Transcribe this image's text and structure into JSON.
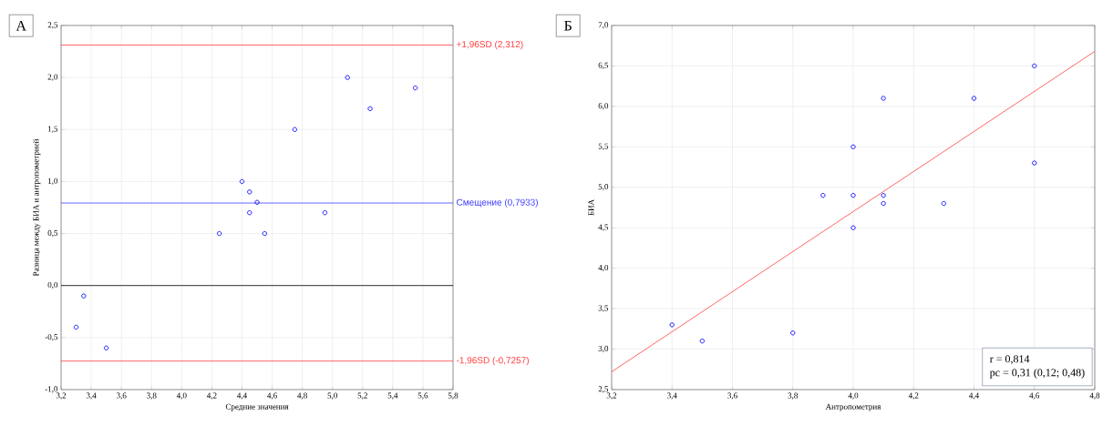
{
  "chart_data": [
    {
      "type": "scatter",
      "xlabel": "Средние значения",
      "ylabel": "Разница между БИА и антропометрией",
      "annotations": [
        "А"
      ],
      "x": [
        3.3,
        3.35,
        3.5,
        4.25,
        4.4,
        4.45,
        4.45,
        4.5,
        4.55,
        4.75,
        4.95,
        5.1,
        5.25,
        5.55
      ],
      "series": [
        {
          "color": "#0000ff",
          "values": [
            -0.4,
            -0.1,
            -0.6,
            0.5,
            1.0,
            0.9,
            0.7,
            0.8,
            0.5,
            1.5,
            0.7,
            2.0,
            1.7,
            1.9
          ]
        }
      ],
      "xlim": [
        3.2,
        5.8
      ],
      "xticks": [
        {
          "value": 3.2,
          "label": "3,2"
        },
        {
          "value": 3.4,
          "label": "3,4"
        },
        {
          "value": 3.6,
          "label": "3,6"
        },
        {
          "value": 3.8,
          "label": "3,8"
        },
        {
          "value": 4.0,
          "label": "4,0"
        },
        {
          "value": 4.2,
          "label": "4,2"
        },
        {
          "value": 4.4,
          "label": "4,4"
        },
        {
          "value": 4.6,
          "label": "4,6"
        },
        {
          "value": 4.8,
          "label": "4,8"
        },
        {
          "value": 5.0,
          "label": "5,0"
        },
        {
          "value": 5.2,
          "label": "5,2"
        },
        {
          "value": 5.4,
          "label": "5,4"
        },
        {
          "value": 5.6,
          "label": "5,6"
        },
        {
          "value": 5.8,
          "label": "5,8"
        }
      ],
      "ylim": [
        -1.0,
        2.5
      ],
      "yticks": [
        {
          "value": -1.0,
          "label": "-1,0"
        },
        {
          "value": -0.5,
          "label": "-0,5"
        },
        {
          "value": 0.0,
          "label": "0,0"
        },
        {
          "value": 0.5,
          "label": "0,5"
        },
        {
          "value": 1.0,
          "label": "1,0"
        },
        {
          "value": 1.5,
          "label": "1,5"
        },
        {
          "value": 2.0,
          "label": "2,0"
        },
        {
          "value": 2.5,
          "label": "2,5"
        }
      ],
      "ref_lines": [
        {
          "axis": "y",
          "value": 2.312,
          "label": "+1,96SD (2,312)",
          "color": "#ff4040"
        },
        {
          "axis": "y",
          "value": 0.7933,
          "label": "Смещение (0,7933)",
          "color": "#4040ff"
        },
        {
          "axis": "y",
          "value": 0,
          "label": null,
          "color": "#000000"
        },
        {
          "axis": "y",
          "value": -0.7257,
          "label": "-1,96SD (-0,7257)",
          "color": "#ff4040"
        }
      ],
      "grid": true,
      "marker": "circle"
    },
    {
      "type": "scatter",
      "xlabel": "Антропометрия",
      "ylabel": "БИА",
      "annotations": [
        "Б",
        "r = 0,814",
        "pc = 0,31 (0,12; 0,48)"
      ],
      "x": [
        3.4,
        3.5,
        3.8,
        3.9,
        4.0,
        4.0,
        4.0,
        4.1,
        4.1,
        4.1,
        4.3,
        4.4,
        4.6,
        4.6
      ],
      "series": [
        {
          "color": "#0000ff",
          "marker": "circle",
          "values": [
            3.3,
            3.1,
            3.2,
            4.9,
            5.5,
            4.9,
            4.5,
            6.1,
            4.9,
            4.8,
            4.8,
            6.1,
            6.5,
            5.3
          ]
        },
        {
          "type": "line",
          "color": "#ff4040",
          "marker": "none",
          "x": [
            3.2,
            4.8
          ],
          "values": [
            2.72,
            6.68
          ]
        }
      ],
      "xlim": [
        3.2,
        4.8
      ],
      "xticks": [
        {
          "value": 3.2,
          "label": "3,2"
        },
        {
          "value": 3.4,
          "label": "3,4"
        },
        {
          "value": 3.6,
          "label": "3,6"
        },
        {
          "value": 3.8,
          "label": "3,8"
        },
        {
          "value": 4.0,
          "label": "4,0"
        },
        {
          "value": 4.2,
          "label": "4,2"
        },
        {
          "value": 4.4,
          "label": "4,4"
        },
        {
          "value": 4.6,
          "label": "4,6"
        },
        {
          "value": 4.8,
          "label": "4,8"
        }
      ],
      "ylim": [
        2.5,
        7.0
      ],
      "yticks": [
        {
          "value": 2.5,
          "label": "2,5"
        },
        {
          "value": 3.0,
          "label": "3,0"
        },
        {
          "value": 3.5,
          "label": "3,5"
        },
        {
          "value": 4.0,
          "label": "4,0"
        },
        {
          "value": 4.5,
          "label": "4,5"
        },
        {
          "value": 5.0,
          "label": "5,0"
        },
        {
          "value": 5.5,
          "label": "5,5"
        },
        {
          "value": 6.0,
          "label": "6,0"
        },
        {
          "value": 6.5,
          "label": "6,5"
        },
        {
          "value": 7.0,
          "label": "7,0"
        }
      ],
      "grid": true
    }
  ]
}
